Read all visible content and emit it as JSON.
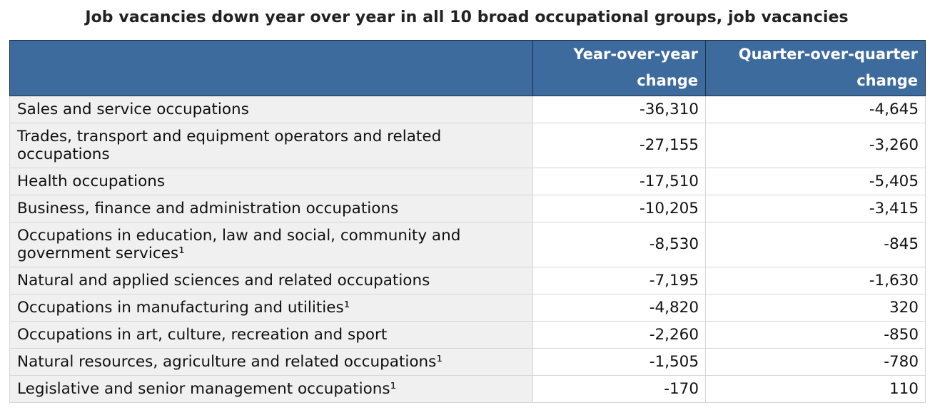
{
  "chart_data": {
    "type": "table",
    "title": "Job vacancies down year over year in all 10 broad occupational groups, job vacancies",
    "columns": [
      "",
      "Year-over-year change",
      "Quarter-over-quarter change"
    ],
    "rows": [
      {
        "label": "Sales and service occupations",
        "yoy": "-36,310",
        "qoq": "-4,645"
      },
      {
        "label": "Trades, transport and equipment operators and related occupations",
        "yoy": "-27,155",
        "qoq": "-3,260"
      },
      {
        "label": "Health occupations",
        "yoy": "-17,510",
        "qoq": "-5,405"
      },
      {
        "label": "Business, finance and administration occupations",
        "yoy": "-10,205",
        "qoq": "-3,415"
      },
      {
        "label": "Occupations in education, law and social, community and government services¹",
        "yoy": "-8,530",
        "qoq": "-845"
      },
      {
        "label": "Natural and applied sciences and related occupations",
        "yoy": "-7,195",
        "qoq": "-1,630"
      },
      {
        "label": "Occupations in manufacturing and utilities¹",
        "yoy": "-4,820",
        "qoq": "320"
      },
      {
        "label": "Occupations in art, culture, recreation and sport",
        "yoy": "-2,260",
        "qoq": "-850"
      },
      {
        "label": "Natural resources, agriculture and related occupations¹",
        "yoy": "-1,505",
        "qoq": "-780"
      },
      {
        "label": "Legislative and senior management occupations¹",
        "yoy": "-170",
        "qoq": "110"
      }
    ],
    "values": {
      "year_over_year_change": [
        -36310,
        -27155,
        -17510,
        -10205,
        -8530,
        -7195,
        -4820,
        -2260,
        -1505,
        -170
      ],
      "quarter_over_quarter_change": [
        -4645,
        -3260,
        -5405,
        -3415,
        -845,
        -1630,
        320,
        -850,
        -780,
        110
      ]
    }
  },
  "colors": {
    "header_bg": "#3d6b9e",
    "header_text": "#ffffff",
    "label_cell_bg": "#f0f0f0"
  }
}
